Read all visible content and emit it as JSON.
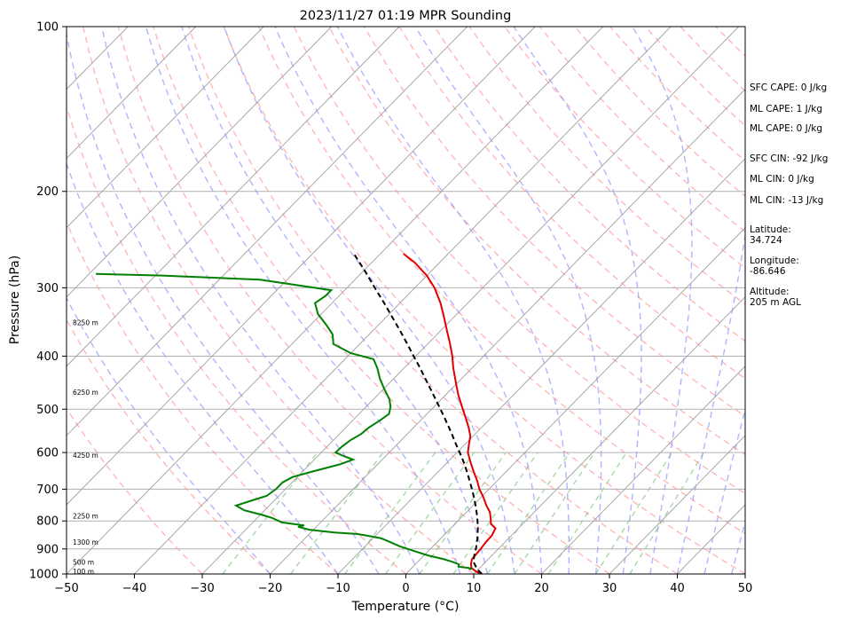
{
  "chart_data": {
    "type": "line",
    "subtype": "skew-T log-P sounding",
    "title": "2023/11/27 01:19 MPR Sounding",
    "xlabel": "Temperature (°C)",
    "ylabel": "Pressure (hPa)",
    "xlim": [
      -50,
      50
    ],
    "ylim": [
      1000,
      100
    ],
    "y_scale": "log",
    "x_ticks": [
      "−50",
      "−40",
      "−30",
      "−20",
      "−10",
      "0",
      "10",
      "20",
      "30",
      "40",
      "50"
    ],
    "y_ticks": [
      "100",
      "200",
      "300",
      "400",
      "500",
      "600",
      "700",
      "800",
      "900",
      "1000"
    ],
    "grid": true,
    "series": [
      {
        "role": "temperature",
        "color": "#e00000",
        "style": "solid",
        "points": [
          [
            1000,
            11.2
          ],
          [
            990,
            10.0
          ],
          [
            975,
            8.8
          ],
          [
            960,
            8.2
          ],
          [
            940,
            7.6
          ],
          [
            920,
            7.5
          ],
          [
            900,
            7.4
          ],
          [
            875,
            7.2
          ],
          [
            850,
            7.1
          ],
          [
            825,
            6.6
          ],
          [
            810,
            5.3
          ],
          [
            790,
            4.4
          ],
          [
            770,
            3.4
          ],
          [
            750,
            2.0
          ],
          [
            725,
            0.4
          ],
          [
            700,
            -1.4
          ],
          [
            675,
            -3.0
          ],
          [
            650,
            -4.8
          ],
          [
            625,
            -6.6
          ],
          [
            600,
            -8.4
          ],
          [
            580,
            -9.4
          ],
          [
            560,
            -10.4
          ],
          [
            540,
            -11.9
          ],
          [
            520,
            -13.6
          ],
          [
            500,
            -15.4
          ],
          [
            470,
            -18.2
          ],
          [
            450,
            -20.0
          ],
          [
            420,
            -22.8
          ],
          [
            400,
            -24.6
          ],
          [
            380,
            -26.7
          ],
          [
            360,
            -29.0
          ],
          [
            340,
            -31.4
          ],
          [
            320,
            -34.0
          ],
          [
            300,
            -37.1
          ],
          [
            285,
            -40.0
          ],
          [
            270,
            -43.6
          ],
          [
            260,
            -46.6
          ]
        ]
      },
      {
        "role": "dewpoint",
        "color": "#008000",
        "style": "solid",
        "points": [
          [
            980,
            8.6
          ],
          [
            978,
            9.0
          ],
          [
            975,
            8.4
          ],
          [
            970,
            6.7
          ],
          [
            960,
            6.4
          ],
          [
            950,
            5.1
          ],
          [
            940,
            3.5
          ],
          [
            925,
            0.6
          ],
          [
            910,
            -1.8
          ],
          [
            890,
            -4.9
          ],
          [
            870,
            -7.5
          ],
          [
            860,
            -8.9
          ],
          [
            850,
            -11.5
          ],
          [
            845,
            -13.0
          ],
          [
            840,
            -16.5
          ],
          [
            830,
            -20.6
          ],
          [
            820,
            -22.7
          ],
          [
            815,
            -22.0
          ],
          [
            805,
            -25.7
          ],
          [
            790,
            -27.8
          ],
          [
            780,
            -29.7
          ],
          [
            765,
            -33.0
          ],
          [
            750,
            -34.9
          ],
          [
            735,
            -33.4
          ],
          [
            720,
            -31.8
          ],
          [
            700,
            -31.4
          ],
          [
            680,
            -31.4
          ],
          [
            665,
            -30.7
          ],
          [
            650,
            -28.6
          ],
          [
            630,
            -25.5
          ],
          [
            618,
            -24.3
          ],
          [
            610,
            -26.0
          ],
          [
            600,
            -27.9
          ],
          [
            585,
            -27.8
          ],
          [
            570,
            -27.5
          ],
          [
            555,
            -26.8
          ],
          [
            540,
            -26.6
          ],
          [
            525,
            -26.0
          ],
          [
            510,
            -25.6
          ],
          [
            495,
            -26.4
          ],
          [
            480,
            -27.6
          ],
          [
            460,
            -29.8
          ],
          [
            440,
            -32.0
          ],
          [
            420,
            -34.0
          ],
          [
            405,
            -35.8
          ],
          [
            395,
            -40.0
          ],
          [
            380,
            -43.9
          ],
          [
            365,
            -45.4
          ],
          [
            350,
            -47.8
          ],
          [
            335,
            -50.5
          ],
          [
            320,
            -52.5
          ],
          [
            310,
            -52.0
          ],
          [
            303,
            -52.0
          ],
          [
            290,
            -64.0
          ],
          [
            285,
            -79.0
          ],
          [
            283,
            -89.0
          ]
        ]
      },
      {
        "role": "parcel profile",
        "color": "#000000",
        "style": "dashed",
        "points": [
          [
            1000,
            11.2
          ],
          [
            980,
            9.8
          ],
          [
            950,
            8.2
          ],
          [
            925,
            7.4
          ],
          [
            900,
            6.7
          ],
          [
            875,
            5.9
          ],
          [
            850,
            5.0
          ],
          [
            825,
            4.0
          ],
          [
            800,
            2.9
          ],
          [
            775,
            1.7
          ],
          [
            750,
            0.4
          ],
          [
            725,
            -1.0
          ],
          [
            700,
            -2.5
          ],
          [
            675,
            -4.1
          ],
          [
            650,
            -5.8
          ],
          [
            625,
            -7.6
          ],
          [
            600,
            -9.6
          ],
          [
            580,
            -11.3
          ],
          [
            560,
            -13.0
          ],
          [
            540,
            -14.8
          ],
          [
            520,
            -16.7
          ],
          [
            500,
            -18.7
          ],
          [
            480,
            -20.8
          ],
          [
            460,
            -23.0
          ],
          [
            440,
            -25.3
          ],
          [
            420,
            -27.7
          ],
          [
            400,
            -30.3
          ],
          [
            380,
            -33.0
          ],
          [
            360,
            -35.9
          ],
          [
            340,
            -39.0
          ],
          [
            320,
            -42.3
          ],
          [
            300,
            -45.9
          ],
          [
            280,
            -49.7
          ],
          [
            260,
            -53.9
          ]
        ]
      }
    ],
    "height_labels": [
      {
        "text": "100 m",
        "p": 988
      },
      {
        "text": "500 m",
        "p": 951
      },
      {
        "text": "1300 m",
        "p": 874
      },
      {
        "text": "2250 m",
        "p": 783
      },
      {
        "text": "4250 m",
        "p": 606
      },
      {
        "text": "6250 m",
        "p": 465
      },
      {
        "text": "8250 m",
        "p": 347
      }
    ],
    "reference_lines": {
      "isotherm_color": "#a0a0a0",
      "dry_adiabat_color": "#ff9999",
      "moist_adiabat_color": "#9999ff",
      "mixing_ratio_color": "#88cc88"
    },
    "stats": [
      "SFC CAPE: 0 J/kg",
      "ML CAPE: 1 J/kg",
      "ML CAPE: 0 J/kg",
      "SFC CIN: -92 J/kg",
      "ML CIN: 0 J/kg",
      "ML CIN: -13 J/kg"
    ],
    "location": {
      "latitude_label": "Latitude:",
      "latitude": "34.724",
      "longitude_label": "Longitude:",
      "longitude": "-86.646",
      "altitude_label": "Altitude:",
      "altitude": "205 m AGL"
    }
  }
}
